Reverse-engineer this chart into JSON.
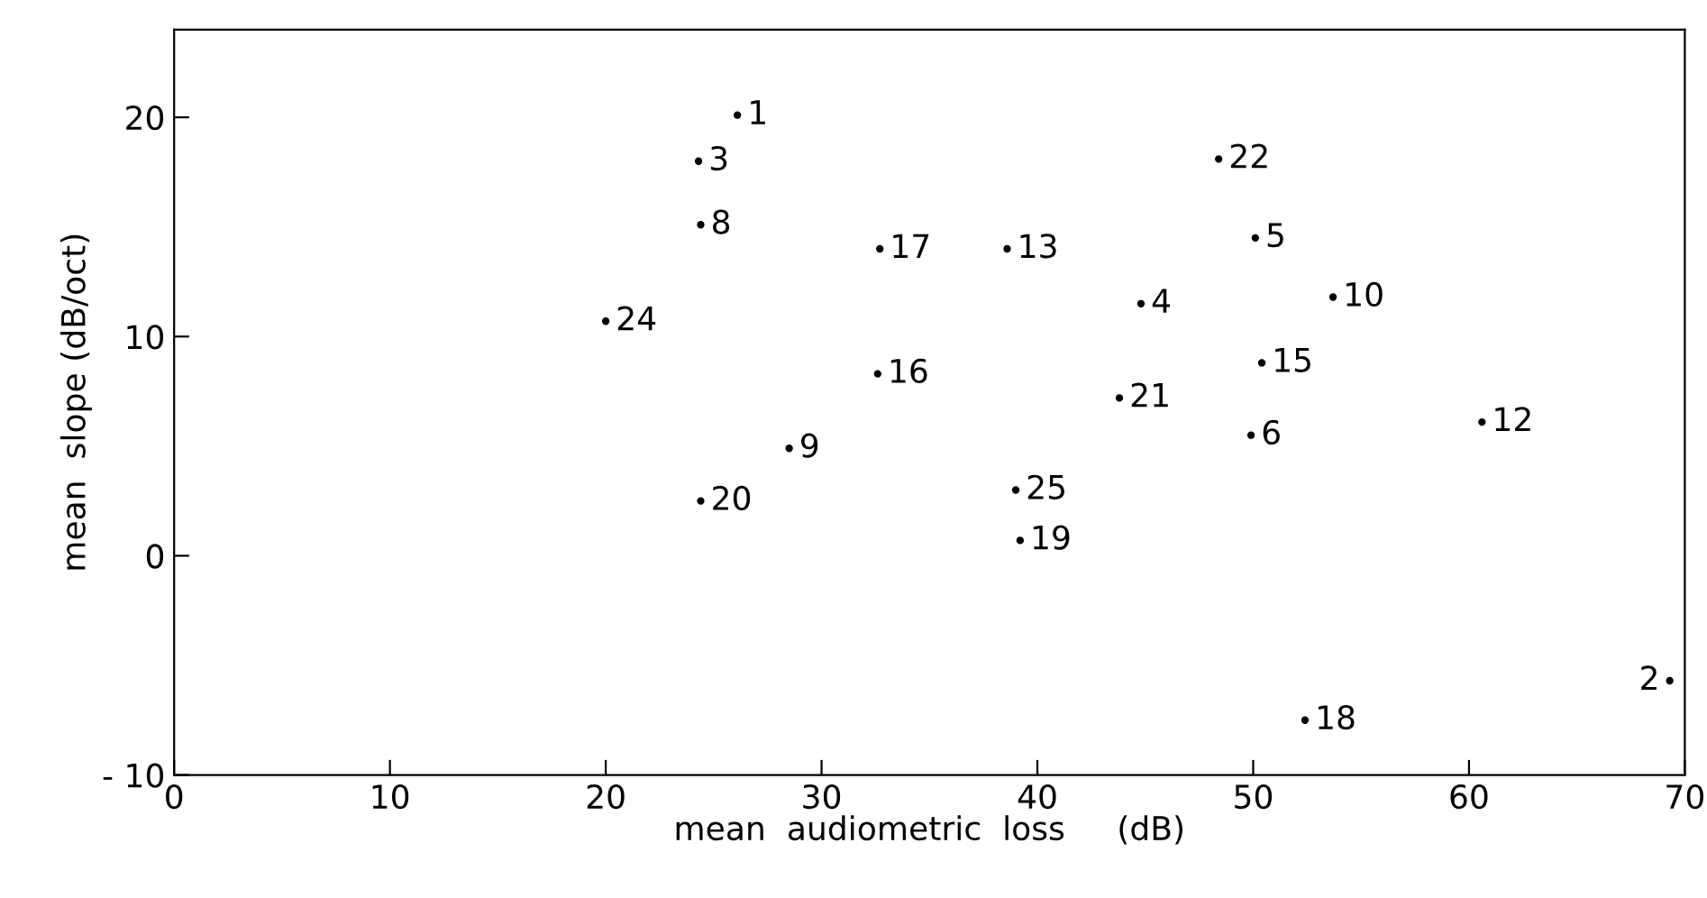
{
  "chart_data": {
    "type": "scatter",
    "xlabel": "mean  audiometric  loss     (dB)",
    "ylabel": "mean  slope (dB/oct)",
    "x": [
      26.1,
      69.3,
      24.3,
      44.8,
      50.1,
      49.9,
      24.4,
      28.5,
      53.7,
      60.6,
      38.6,
      50.4,
      32.6,
      32.7,
      52.4,
      39.2,
      24.4,
      43.8,
      48.4,
      20.0,
      39.0
    ],
    "series": [
      {
        "color": "#000000",
        "values": [
          20.1,
          -5.7,
          18.0,
          11.5,
          14.5,
          5.5,
          15.1,
          4.9,
          11.8,
          6.1,
          14.0,
          8.8,
          8.3,
          14.0,
          -7.5,
          0.7,
          2.5,
          7.2,
          18.1,
          10.7,
          3.0
        ]
      }
    ],
    "annotations": [
      {
        "text": "1",
        "x": 26.1,
        "y": 20.1
      },
      {
        "text": "2",
        "x": 69.3,
        "y": -5.7
      },
      {
        "text": "3",
        "x": 24.3,
        "y": 18.0
      },
      {
        "text": "4",
        "x": 44.8,
        "y": 11.5
      },
      {
        "text": "5",
        "x": 50.1,
        "y": 14.5
      },
      {
        "text": "6",
        "x": 49.9,
        "y": 5.5
      },
      {
        "text": "8",
        "x": 24.4,
        "y": 15.1
      },
      {
        "text": "9",
        "x": 28.5,
        "y": 4.9
      },
      {
        "text": "10",
        "x": 53.7,
        "y": 11.8
      },
      {
        "text": "12",
        "x": 60.6,
        "y": 6.1
      },
      {
        "text": "13",
        "x": 38.6,
        "y": 14.0
      },
      {
        "text": "15",
        "x": 50.4,
        "y": 8.8
      },
      {
        "text": "16",
        "x": 32.6,
        "y": 8.3
      },
      {
        "text": "17",
        "x": 32.7,
        "y": 14.0
      },
      {
        "text": "18",
        "x": 52.4,
        "y": -7.5
      },
      {
        "text": "19",
        "x": 39.2,
        "y": 0.7
      },
      {
        "text": "20",
        "x": 24.4,
        "y": 2.5
      },
      {
        "text": "21",
        "x": 43.8,
        "y": 7.2
      },
      {
        "text": "22",
        "x": 48.4,
        "y": 18.1
      },
      {
        "text": "24",
        "x": 20.0,
        "y": 10.7
      },
      {
        "text": "25",
        "x": 39.0,
        "y": 3.0
      }
    ],
    "marker": "circle",
    "legend": false,
    "xlim": [
      0,
      70
    ],
    "ylim": [
      -10,
      24
    ],
    "xticks": [
      0,
      10,
      20,
      30,
      40,
      50,
      60,
      70
    ],
    "yticks": [
      -10,
      0,
      10,
      20
    ],
    "grid": false
  }
}
